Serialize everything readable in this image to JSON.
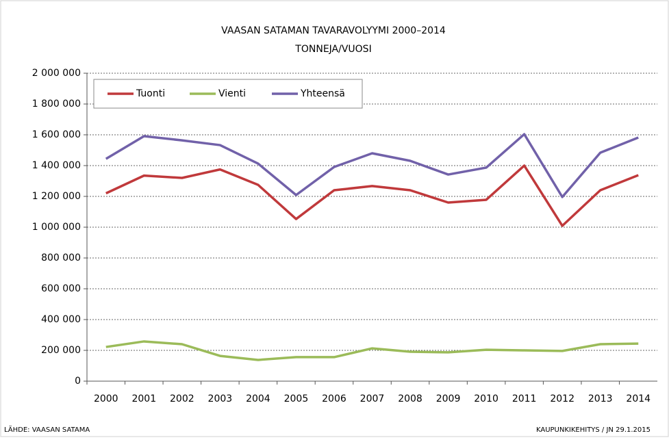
{
  "chart_data": {
    "type": "line",
    "title": "VAASAN SATAMAN TAVARAVOLYYMI  2000–2014",
    "subtitle": "TONNEJA/VUOSI",
    "categories": [
      "2000",
      "2001",
      "2002",
      "2003",
      "2004",
      "2005",
      "2006",
      "2007",
      "2008",
      "2009",
      "2010",
      "2011",
      "2012",
      "2013",
      "2014"
    ],
    "series": [
      {
        "name": "Tuonti",
        "color": "#c0393b",
        "values": [
          1220000,
          1335000,
          1320000,
          1375000,
          1275000,
          1053000,
          1240000,
          1267000,
          1240000,
          1160000,
          1178000,
          1400000,
          1009000,
          1240000,
          1338000
        ]
      },
      {
        "name": "Vienti",
        "color": "#9bbb59",
        "values": [
          222000,
          258000,
          240000,
          164000,
          138000,
          156000,
          156000,
          213000,
          191000,
          187000,
          204000,
          200000,
          196000,
          240000,
          244000
        ]
      },
      {
        "name": "Yhteensä",
        "color": "#7161a9",
        "values": [
          1444000,
          1591000,
          1564000,
          1533000,
          1413000,
          1209000,
          1391000,
          1480000,
          1431000,
          1342000,
          1387000,
          1604000,
          1196000,
          1484000,
          1582000
        ]
      }
    ],
    "ylim": [
      0,
      2000000
    ],
    "yticks": [
      0,
      {
        "value": 200000,
        "label": "200 000"
      },
      {
        "value": 400000,
        "label": "400 000"
      },
      {
        "value": 600000,
        "label": "600 000"
      },
      {
        "value": 800000,
        "label": "800 000"
      },
      {
        "value": 1000000,
        "label": "1 000 000"
      },
      {
        "value": 1200000,
        "label": "1 200 000"
      },
      {
        "value": 1400000,
        "label": "1 400 000"
      },
      {
        "value": 1600000,
        "label": "1 600 000"
      },
      {
        "value": 1800000,
        "label": "1 800 000"
      },
      {
        "value": 2000000,
        "label": "2 000 000"
      }
    ],
    "grid": true,
    "legend": "top-left",
    "source": "LÄHDE: VAASAN SATAMA",
    "credit": "KAUPUNKIKEHITYS  / JN 29.1.2015"
  }
}
